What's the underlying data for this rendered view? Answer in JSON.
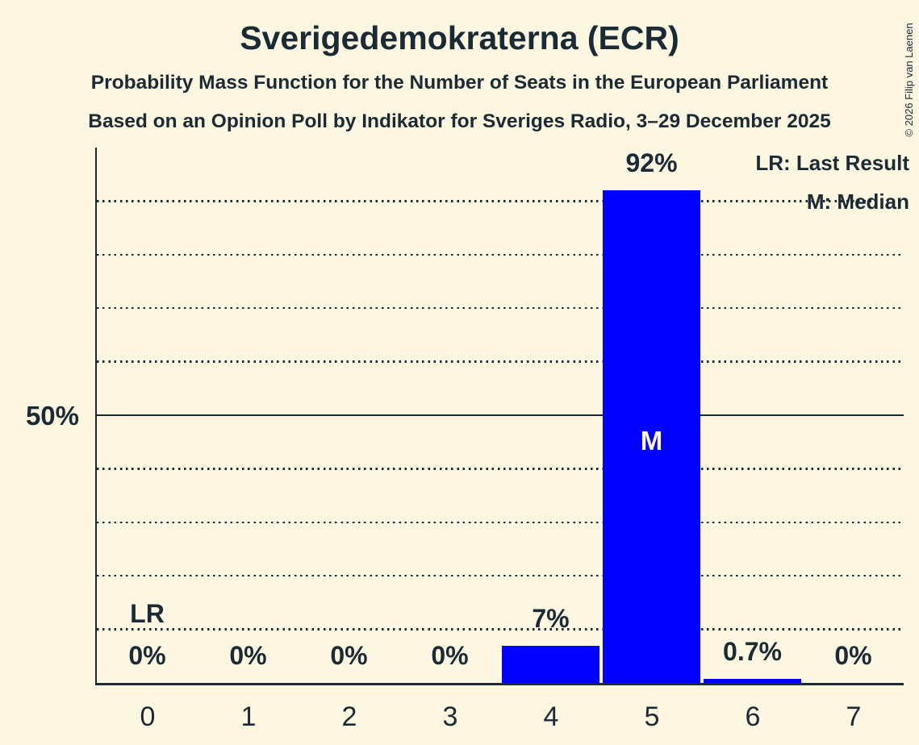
{
  "copyright": "© 2026 Filip van Laenen",
  "colors": {
    "background": "#fdf6e0",
    "bar": "#0000fe",
    "ink": "#1b2b35"
  },
  "chart_data": {
    "type": "bar",
    "title": "Sverigedemokraterna (ECR)",
    "subtitle": "Probability Mass Function for the Number of Seats in the European Parliament",
    "source_line": "Based on an Opinion Poll by Indikator for Sveriges Radio, 3–29 December 2025",
    "xlabel": "",
    "ylabel": "",
    "categories": [
      "0",
      "1",
      "2",
      "3",
      "4",
      "5",
      "6",
      "7"
    ],
    "values": [
      0,
      0,
      0,
      0,
      7,
      92,
      0.7,
      0
    ],
    "value_labels": [
      "0%",
      "0%",
      "0%",
      "0%",
      "7%",
      "92%",
      "0.7%",
      "0%"
    ],
    "ylim": [
      0,
      100
    ],
    "gridlines_dotted": [
      10,
      20,
      30,
      40,
      60,
      70,
      80,
      90
    ],
    "gridlines_solid": [
      50
    ],
    "y_reference_line": {
      "value": 50,
      "label": "50%"
    },
    "grid": "horizontal dotted lines every 10%, solid line at 50%",
    "legend": {
      "position": "top-right",
      "entries": [
        "LR: Last Result",
        "M: Median"
      ]
    },
    "annotations": {
      "last_result": {
        "seats": 0,
        "label": "LR"
      },
      "median": {
        "seats": 5,
        "label": "M"
      }
    }
  }
}
